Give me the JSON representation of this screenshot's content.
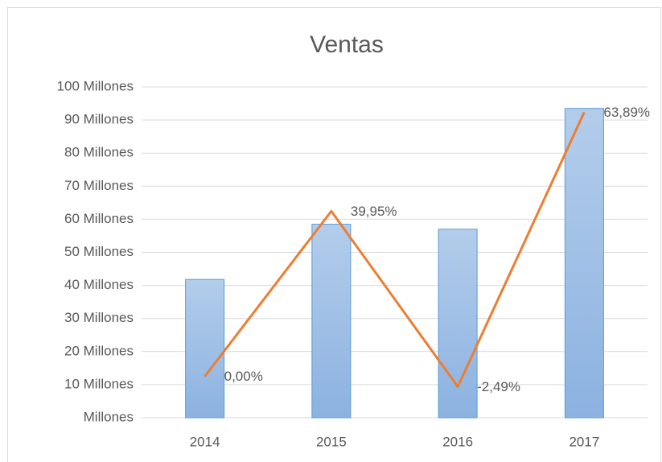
{
  "chart_data": {
    "type": "combo",
    "title": "Ventas",
    "categories": [
      "2014",
      "2015",
      "2016",
      "2017"
    ],
    "series": [
      {
        "type": "bar",
        "color": "#9dbde6",
        "values": [
          41.8,
          58.5,
          57,
          93.5
        ]
      },
      {
        "type": "line",
        "axis": "y2",
        "color": "#ed7d31",
        "values": [
          0,
          39.95,
          -2.49,
          63.89
        ],
        "value_labels": [
          "0,00%",
          "39,95%",
          "-2,49%",
          "63,89%"
        ]
      }
    ],
    "ylim": [
      0,
      100
    ],
    "yticks": [
      {
        "value": 0,
        "label": "Millones"
      },
      {
        "value": 10,
        "label": "10 Millones"
      },
      {
        "value": 20,
        "label": "20 Millones"
      },
      {
        "value": 30,
        "label": "30 Millones"
      },
      {
        "value": 40,
        "label": "40 Millones"
      },
      {
        "value": 50,
        "label": "50 Millones"
      },
      {
        "value": 60,
        "label": "60 Millones"
      },
      {
        "value": 70,
        "label": "70 Millones"
      },
      {
        "value": 80,
        "label": "80 Millones"
      },
      {
        "value": 90,
        "label": "90 Millones"
      },
      {
        "value": 100,
        "label": "100 Millones"
      }
    ],
    "y2lim": [
      -10,
      70
    ],
    "grid": true
  }
}
